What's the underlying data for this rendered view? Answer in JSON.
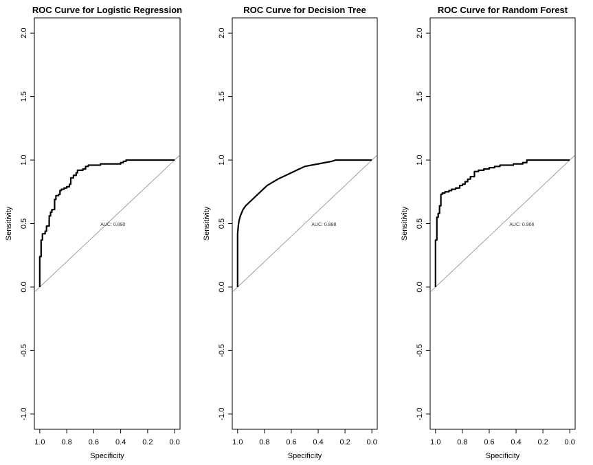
{
  "chart_data": [
    {
      "type": "line",
      "title": "ROC Curve for Logistic Regression",
      "xlabel": "Specificity",
      "ylabel": "Sensitivity",
      "xlim": [
        1.0,
        0.0
      ],
      "ylim": [
        -1.0,
        2.0
      ],
      "x_ticks": [
        "1.0",
        "0.8",
        "0.6",
        "0.4",
        "0.2",
        "0.0"
      ],
      "y_ticks": [
        "-1.0",
        "-0.5",
        "0.0",
        "0.5",
        "1.0",
        "1.5",
        "2.0"
      ],
      "auc_label": "AUC: 0.890",
      "auc_pos": [
        0.55,
        0.48
      ],
      "curve_style": "step",
      "series": [
        {
          "x": [
            1.0,
            1.0,
            0.99,
            0.99,
            0.98,
            0.98,
            0.96,
            0.96,
            0.95,
            0.95,
            0.93,
            0.93,
            0.92,
            0.92,
            0.91,
            0.91,
            0.89,
            0.89,
            0.88,
            0.88,
            0.86,
            0.86,
            0.85,
            0.85,
            0.84,
            0.84,
            0.82,
            0.82,
            0.8,
            0.8,
            0.78,
            0.78,
            0.77,
            0.77,
            0.75,
            0.75,
            0.73,
            0.73,
            0.72,
            0.72,
            0.7,
            0.7,
            0.68,
            0.68,
            0.66,
            0.66,
            0.64,
            0.64,
            0.62,
            0.62,
            0.6,
            0.6,
            0.58,
            0.58,
            0.55,
            0.55,
            0.52,
            0.52,
            0.48,
            0.48,
            0.44,
            0.44,
            0.4,
            0.4,
            0.38,
            0.38,
            0.36,
            0.36,
            0.0
          ],
          "y": [
            0.0,
            0.24,
            0.24,
            0.37,
            0.37,
            0.42,
            0.42,
            0.44,
            0.44,
            0.48,
            0.48,
            0.56,
            0.56,
            0.59,
            0.59,
            0.61,
            0.61,
            0.69,
            0.69,
            0.72,
            0.72,
            0.73,
            0.73,
            0.76,
            0.76,
            0.77,
            0.77,
            0.78,
            0.78,
            0.79,
            0.79,
            0.81,
            0.81,
            0.86,
            0.86,
            0.88,
            0.88,
            0.9,
            0.9,
            0.92,
            0.92,
            0.92,
            0.92,
            0.93,
            0.93,
            0.95,
            0.95,
            0.96,
            0.96,
            0.96,
            0.96,
            0.96,
            0.96,
            0.96,
            0.96,
            0.97,
            0.97,
            0.97,
            0.97,
            0.97,
            0.97,
            0.97,
            0.97,
            0.98,
            0.98,
            0.99,
            0.99,
            1.0,
            1.0
          ]
        }
      ]
    },
    {
      "type": "line",
      "title": "ROC Curve for Decision Tree",
      "xlabel": "Specificity",
      "ylabel": "Sensitivity",
      "xlim": [
        1.0,
        0.0
      ],
      "ylim": [
        -1.0,
        2.0
      ],
      "x_ticks": [
        "1.0",
        "0.8",
        "0.6",
        "0.4",
        "0.2",
        "0.0"
      ],
      "y_ticks": [
        "-1.0",
        "-0.5",
        "0.0",
        "0.5",
        "1.0",
        "1.5",
        "2.0"
      ],
      "auc_label": "AUC: 0.888",
      "auc_pos": [
        0.45,
        0.48
      ],
      "curve_style": "smooth",
      "series": [
        {
          "x": [
            1.0,
            1.0,
            0.995,
            0.99,
            0.98,
            0.96,
            0.94,
            0.9,
            0.85,
            0.8,
            0.78,
            0.7,
            0.6,
            0.5,
            0.45,
            0.4,
            0.35,
            0.3,
            0.27,
            0.0
          ],
          "y": [
            0.0,
            0.42,
            0.48,
            0.52,
            0.56,
            0.61,
            0.64,
            0.68,
            0.73,
            0.78,
            0.8,
            0.85,
            0.9,
            0.95,
            0.96,
            0.97,
            0.98,
            0.99,
            1.0,
            1.0
          ]
        }
      ]
    },
    {
      "type": "line",
      "title": "ROC Curve for Random Forest",
      "xlabel": "Specificity",
      "ylabel": "Sensitivity",
      "xlim": [
        1.0,
        0.0
      ],
      "ylim": [
        -1.0,
        2.0
      ],
      "x_ticks": [
        "1.0",
        "0.8",
        "0.6",
        "0.4",
        "0.2",
        "0.0"
      ],
      "y_ticks": [
        "-1.0",
        "-0.5",
        "0.0",
        "0.5",
        "1.0",
        "1.5",
        "2.0"
      ],
      "auc_label": "AUC: 0.906",
      "auc_pos": [
        0.45,
        0.48
      ],
      "curve_style": "step",
      "series": [
        {
          "x": [
            1.0,
            1.0,
            0.99,
            0.99,
            0.98,
            0.98,
            0.97,
            0.97,
            0.96,
            0.96,
            0.95,
            0.95,
            0.93,
            0.93,
            0.9,
            0.9,
            0.88,
            0.88,
            0.85,
            0.85,
            0.82,
            0.82,
            0.8,
            0.8,
            0.78,
            0.78,
            0.76,
            0.76,
            0.74,
            0.74,
            0.71,
            0.71,
            0.68,
            0.68,
            0.64,
            0.64,
            0.6,
            0.6,
            0.56,
            0.56,
            0.52,
            0.52,
            0.48,
            0.48,
            0.42,
            0.42,
            0.35,
            0.35,
            0.32,
            0.32,
            0.0
          ],
          "y": [
            0.0,
            0.37,
            0.37,
            0.55,
            0.55,
            0.58,
            0.58,
            0.64,
            0.64,
            0.73,
            0.73,
            0.74,
            0.74,
            0.75,
            0.75,
            0.76,
            0.76,
            0.77,
            0.77,
            0.78,
            0.78,
            0.8,
            0.8,
            0.81,
            0.81,
            0.83,
            0.83,
            0.85,
            0.85,
            0.87,
            0.87,
            0.91,
            0.91,
            0.92,
            0.92,
            0.93,
            0.93,
            0.94,
            0.94,
            0.95,
            0.95,
            0.96,
            0.96,
            0.96,
            0.96,
            0.97,
            0.97,
            0.98,
            0.98,
            1.0,
            1.0
          ]
        }
      ]
    }
  ]
}
